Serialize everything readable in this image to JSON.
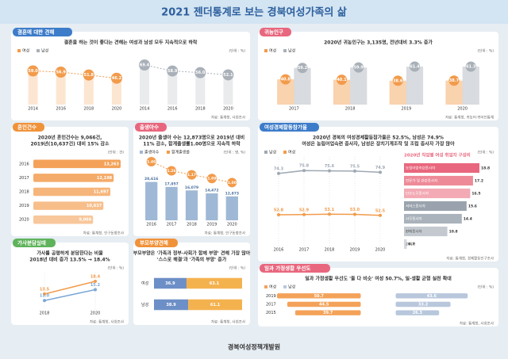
{
  "title": "2021 젠더통계로 보는 경북여성가족의 삶",
  "footer": "경북여성정책개발원",
  "chart_data": [
    {
      "type": "lollipop",
      "header": "결혼에 대한 견해",
      "header_color": "#3d7cc9",
      "subtitle": [
        "결혼을 하는 것이 좋다는 견해는 여성과 남성 모두 지속적으로 하락"
      ],
      "unit": "(단위 : %)",
      "source": "자료: 통계청, 사회조사",
      "categories": [
        "2014",
        "2016",
        "2018",
        "2020"
      ],
      "series": [
        {
          "name": "여성",
          "color": "#f29b4b",
          "values": [
            59,
            56.9,
            51.8,
            46.2
          ],
          "value_labels": [
            "59.0",
            "56.9",
            "51.8",
            "46.2"
          ]
        },
        {
          "name": "남성",
          "color": "#a9b0b8",
          "values": [
            69.4,
            58.9,
            56,
            52.1
          ],
          "value_labels": [
            "69.4",
            "58.9",
            "56.0",
            "52.1"
          ]
        }
      ]
    },
    {
      "type": "bar",
      "header": "귀농인구",
      "header_color": "#e8677e",
      "subtitle": [
        "2020년 귀농인구는 3,135명, 전년대비 3.3% 증가"
      ],
      "unit": "(단위 : %)",
      "source": "자료: 통계청, 귀농어·귀어인통계",
      "categories": [
        "2017",
        "2018",
        "2019",
        "2020"
      ],
      "series": [
        {
          "name": "여성",
          "color": "#f29b4b",
          "values": [
            40.8,
            40.1,
            38.6,
            38.7
          ]
        },
        {
          "name": "남성",
          "color": "#a9b0b8",
          "values": [
            59.2,
            59.9,
            61.4,
            61.3
          ]
        }
      ]
    },
    {
      "type": "hbar",
      "header": "혼인건수",
      "header_color": "#f0923a",
      "subtitle": [
        "2020년 혼인건수는 9,066건,",
        "2019년(10,637건) 대비 15% 감소"
      ],
      "unit": "(단위 : 건)",
      "source": "자료: 통계청, 인구동향조사",
      "categories": [
        "2016",
        "2017",
        "2018",
        "2019",
        "2020"
      ],
      "color": "#f4a259",
      "values": [
        13263,
        12198,
        11697,
        10637,
        9066
      ],
      "value_labels": [
        "13,263",
        "12,198",
        "11,697",
        "10,637",
        "9,066"
      ]
    },
    {
      "type": "combo",
      "header": "출생아수",
      "header_color": "#e8677e",
      "subtitle": [
        "2020년 출생아 수는 12,873명으로 2019년 대비",
        "11% 감소, 합계출생률1.00명으로 지속적 하락"
      ],
      "unit": "(단위 : 명, %)",
      "source": "자료: 통계청, 인구동향조사",
      "categories": [
        "2016",
        "2017",
        "2018",
        "2019",
        "2020"
      ],
      "series": [
        {
          "name": "출생아수",
          "color": "#9fb8d6",
          "values": [
            20616,
            17957,
            16079,
            14472,
            12873
          ],
          "value_labels": [
            "20,616",
            "17,957",
            "16,079",
            "14,472",
            "12,873"
          ]
        },
        {
          "name": "합계출생률",
          "color": "#f29b4b",
          "axis": "y2",
          "values": [
            1.46,
            1.26,
            1.17,
            1.09,
            1
          ],
          "value_labels": [
            "1.46",
            "1.26",
            "1.17",
            "1.09",
            "1.00"
          ]
        }
      ]
    },
    {
      "type": "line",
      "header": "여성경제활동참가율",
      "header_color": "#3d7cc9",
      "subtitle": [
        "2020년 경북의 여성경제활동참가율은 52.5%, 남성은 74.9%",
        "여성은 농림어업숙련 종사자, 남성은 장치기계조작 및 조립 종사자 가장 많아"
      ],
      "unit": "(단위 : %)",
      "source": "자료: 통계청, 경제활동인구조사",
      "categories": [
        "2016",
        "2017",
        "2018",
        "2019",
        "2020"
      ],
      "series": [
        {
          "name": "남성",
          "color": "#9fa8b3",
          "values": [
            74.3,
            75.8,
            75.6,
            75.5,
            74.9
          ]
        },
        {
          "name": "여성",
          "color": "#f29b4b",
          "values": [
            52.8,
            52.9,
            53.1,
            53,
            52.5
          ],
          "value_labels": [
            "52.8",
            "52.9",
            "53.1",
            "53.0",
            "52.5"
          ]
        }
      ]
    },
    {
      "type": "hbar",
      "title": "2020년 직업별 여성 취업자 구성비",
      "categories": [
        "농림어업숙련종사자",
        "전문가 및 관련종사자",
        "단순노무종사자",
        "서비스종사자",
        "사무종사자",
        "판매종사자",
        "관리자"
      ],
      "values": [
        18.8,
        17.2,
        16.5,
        15.6,
        14.4,
        10.8,
        0.7
      ],
      "colors": [
        "#e8677e",
        "#ee8a98",
        "#f3aab4",
        "#9aa3ad",
        "#aab2bb",
        "#c3c9cf",
        "#d5d9dd"
      ]
    },
    {
      "type": "line",
      "header": "가사분담실태",
      "header_color": "#5fb35a",
      "subtitle": [
        "가사를 공평하게 분담한다는 비율",
        "2018년 대비 증가 13.5% → 18.4%"
      ],
      "unit": "(단위 : %)",
      "source": "자료: 통계청, 사회조사",
      "categories": [
        "2018",
        "2020"
      ],
      "series": [
        {
          "color": "#f29b4b",
          "values": [
            13.5,
            18.4
          ]
        },
        {
          "color": "#7aa7d6",
          "values": [
            11,
            15.2
          ],
          "value_labels": [
            "11.0",
            "15.2"
          ]
        }
      ]
    },
    {
      "type": "stacked_hbar",
      "header": "부모부양견해",
      "header_color": "#f0923a",
      "subtitle": [
        "부모부양은 '가족과 정부·사회가 함께 부양' 견해 가장 많아",
        "'스스로 해결'과 '가족의 부양' 증가"
      ],
      "unit": "(단위 : %)",
      "source": "자료: 통계청, 사회조사",
      "categories": [
        "여성",
        "남성"
      ],
      "series": [
        {
          "color": "#6d8fc7",
          "values": [
            36.9,
            38.9
          ]
        },
        {
          "color": "#f4b24f",
          "values": [
            63.1,
            61.1
          ]
        }
      ]
    },
    {
      "type": "butterfly",
      "header": "일과 가정생활 우선도",
      "header_color": "#e8677e",
      "subtitle": [
        "일과 가정생활 우선도 '둘 다 비슷' 여성 50.7%, 일·생활 균형 실천 확대"
      ],
      "unit": "(단위 : %)",
      "source": "자료: 통계청, 사회조사",
      "categories": [
        "2019",
        "2017",
        "2015"
      ],
      "series": [
        {
          "name": "여성",
          "color": "#f4a259",
          "values": [
            50.7,
            44.5,
            39.7
          ]
        },
        {
          "name": "남성",
          "color": "#b8c7dc",
          "values": [
            43.6,
            33.2,
            26.3
          ]
        }
      ]
    }
  ]
}
